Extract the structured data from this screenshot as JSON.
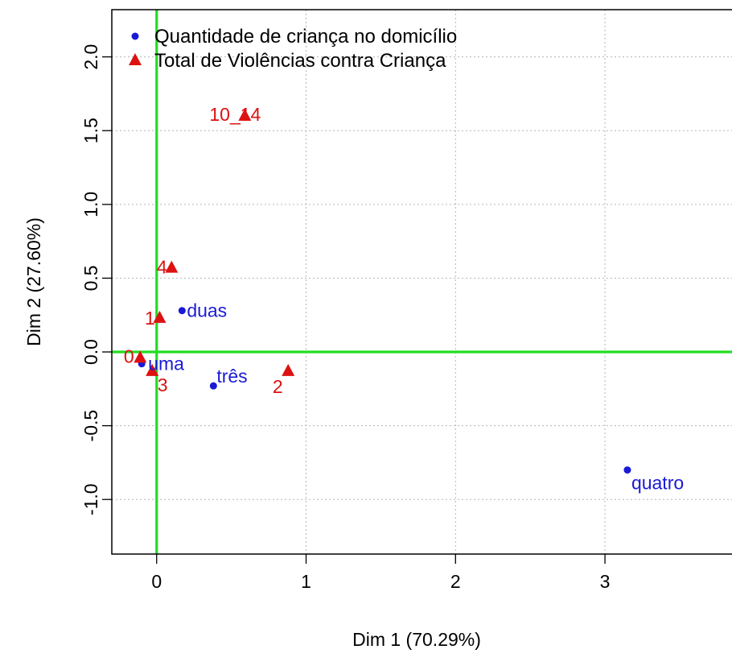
{
  "chart_data": {
    "type": "scatter",
    "xlabel": "Dim 1 (70.29%)",
    "ylabel": "Dim 2 (27.60%)",
    "xlim": [
      -0.3,
      3.85
    ],
    "ylim": [
      -1.37,
      2.32
    ],
    "xticks": [
      0,
      1,
      2,
      3
    ],
    "yticks": [
      -1.0,
      -0.5,
      0.0,
      0.5,
      1.0,
      1.5,
      2.0
    ],
    "ytick_labels": [
      "-1.0",
      "-0.5",
      "0.0",
      "0.5",
      "1.0",
      "1.5",
      "2.0"
    ],
    "grid": true,
    "legend_position": "top-left",
    "reference_line_color": "#22dd22",
    "series": [
      {
        "name": "Quantidade de criança no domicílio",
        "marker": "circle",
        "color": "#1a1ad6",
        "points": [
          {
            "label": "uma",
            "x": -0.1,
            "y": -0.08
          },
          {
            "label": "duas",
            "x": 0.17,
            "y": 0.28
          },
          {
            "label": "três",
            "x": 0.38,
            "y": -0.23
          },
          {
            "label": "quatro",
            "x": 3.15,
            "y": -0.8
          }
        ]
      },
      {
        "name": "Total de Violências contra Criança",
        "marker": "triangle",
        "color": "#dd1111",
        "points": [
          {
            "label": "0",
            "x": -0.11,
            "y": -0.04
          },
          {
            "label": "1",
            "x": 0.02,
            "y": 0.23
          },
          {
            "label": "2",
            "x": 0.88,
            "y": -0.13
          },
          {
            "label": "3",
            "x": -0.03,
            "y": -0.13
          },
          {
            "label": "4",
            "x": 0.1,
            "y": 0.57
          },
          {
            "label": "10_14",
            "x": 0.59,
            "y": 1.6
          }
        ]
      }
    ]
  }
}
